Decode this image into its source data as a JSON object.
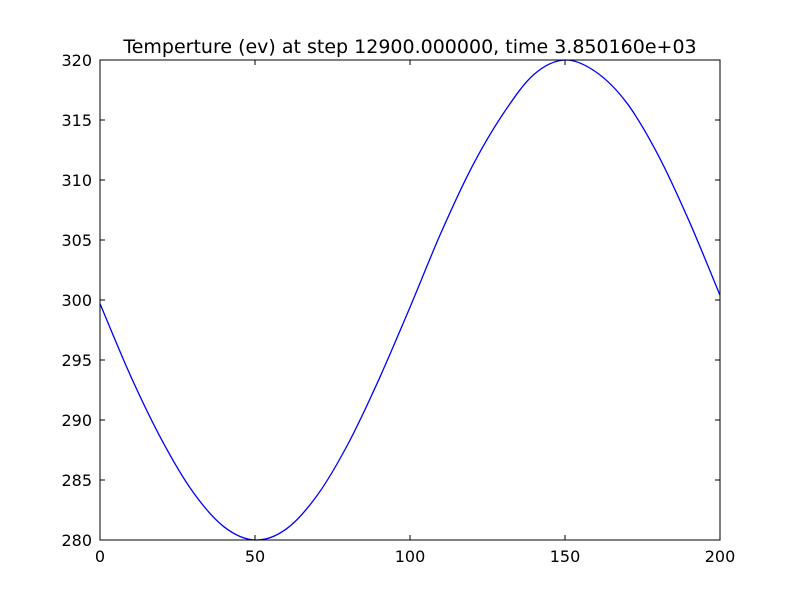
{
  "chart_data": {
    "type": "line",
    "title": "Temperture (ev) at step 12900.000000, time 3.850160e+03",
    "xlabel": "",
    "ylabel": "",
    "xlim": [
      0,
      200
    ],
    "ylim": [
      280,
      320
    ],
    "x_ticks": [
      0,
      50,
      100,
      150,
      200
    ],
    "y_ticks": [
      280,
      285,
      290,
      295,
      300,
      305,
      310,
      315,
      320
    ],
    "grid": false,
    "legend": "none",
    "line_color": "#0000ff",
    "series": [
      {
        "x": [
          0,
          10,
          20,
          30,
          40,
          50,
          60,
          70,
          80,
          90,
          100,
          110,
          120,
          130,
          140,
          150,
          160,
          170,
          180,
          190,
          200
        ],
        "values": [
          299.7,
          293.6,
          288.3,
          284.0,
          281.1,
          280.0,
          280.9,
          283.7,
          288.0,
          293.4,
          299.4,
          305.6,
          311.1,
          315.5,
          318.8,
          320.0,
          319.0,
          316.4,
          312.1,
          306.6,
          300.4
        ]
      }
    ]
  }
}
